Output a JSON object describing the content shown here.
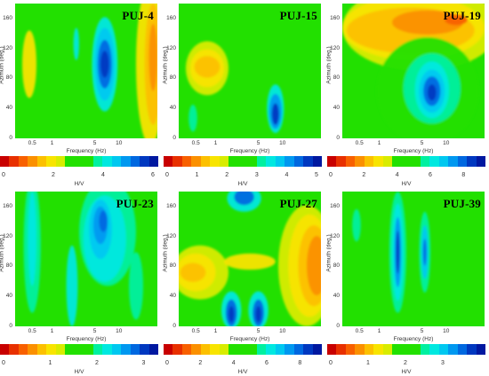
{
  "chart_data": [
    {
      "type": "heatmap",
      "title": "PUJ-4",
      "xlabel": "Frequency (Hz)",
      "ylabel": "Azimuth (deg.)",
      "xticks": [
        "0.5",
        "1",
        "5",
        "10"
      ],
      "yticks": [
        "0",
        "40",
        "80",
        "120",
        "160"
      ],
      "ylim": [
        0,
        180
      ],
      "colorbar_label": "H/V",
      "colorbar_ticks": [
        "0",
        "2",
        "4",
        "6"
      ],
      "colorbar_range": [
        0,
        6
      ]
    },
    {
      "type": "heatmap",
      "title": "PUJ-15",
      "xlabel": "Frequency (Hz)",
      "ylabel": "Azimuth (deg.)",
      "xticks": [
        "0.5",
        "1",
        "5",
        "10"
      ],
      "yticks": [
        "0",
        "40",
        "80",
        "120",
        "160"
      ],
      "ylim": [
        0,
        180
      ],
      "colorbar_label": "H/V",
      "colorbar_ticks": [
        "0",
        "1",
        "2",
        "3",
        "4",
        "5"
      ],
      "colorbar_range": [
        0,
        5
      ]
    },
    {
      "type": "heatmap",
      "title": "PUJ-19",
      "xlabel": "Frequency (Hz)",
      "ylabel": "Azimuth (deg.)",
      "xticks": [
        "0.5",
        "1",
        "5",
        "10"
      ],
      "yticks": [
        "0",
        "40",
        "80",
        "120",
        "160"
      ],
      "ylim": [
        0,
        180
      ],
      "colorbar_label": "H/V",
      "colorbar_ticks": [
        "0",
        "2",
        "4",
        "6",
        "8"
      ],
      "colorbar_range": [
        0,
        9
      ]
    },
    {
      "type": "heatmap",
      "title": "PUJ-23",
      "xlabel": "Frequency (Hz)",
      "ylabel": "Azimuth (deg.)",
      "xticks": [
        "0.5",
        "1",
        "5",
        "10"
      ],
      "yticks": [
        "0",
        "40",
        "80",
        "120",
        "160"
      ],
      "ylim": [
        0,
        180
      ],
      "colorbar_label": "H/V",
      "colorbar_ticks": [
        "0",
        "1",
        "2",
        "3"
      ],
      "colorbar_range": [
        0,
        3.2
      ]
    },
    {
      "type": "heatmap",
      "title": "PUJ-27",
      "xlabel": "Frequency (Hz)",
      "ylabel": "Azimuth (deg.)",
      "xticks": [
        "0.5",
        "1",
        "5",
        "10"
      ],
      "yticks": [
        "0",
        "40",
        "80",
        "120",
        "160"
      ],
      "ylim": [
        0,
        180
      ],
      "colorbar_label": "H/V",
      "colorbar_ticks": [
        "0",
        "2",
        "4",
        "6",
        "8"
      ],
      "colorbar_range": [
        0,
        9
      ]
    },
    {
      "type": "heatmap",
      "title": "PUJ-39",
      "xlabel": "Frequency (Hz)",
      "ylabel": "Azimuth (deg.)",
      "xticks": [
        "0.5",
        "1",
        "5",
        "10"
      ],
      "yticks": [
        "0",
        "40",
        "80",
        "120",
        "160"
      ],
      "ylim": [
        0,
        180
      ],
      "colorbar_label": "H/V",
      "colorbar_ticks": [
        "0",
        "1",
        "2",
        "3"
      ],
      "colorbar_range": [
        0,
        4
      ]
    }
  ],
  "palette": [
    "#c80000",
    "#e83000",
    "#f86000",
    "#fb9000",
    "#fcc000",
    "#f8e400",
    "#d8ec00",
    "#22e000",
    "#22e000",
    "#22e000",
    "#00f0a0",
    "#00e8e0",
    "#00c8f0",
    "#0098f0",
    "#0068e0",
    "#0038c0",
    "#0018a0"
  ]
}
